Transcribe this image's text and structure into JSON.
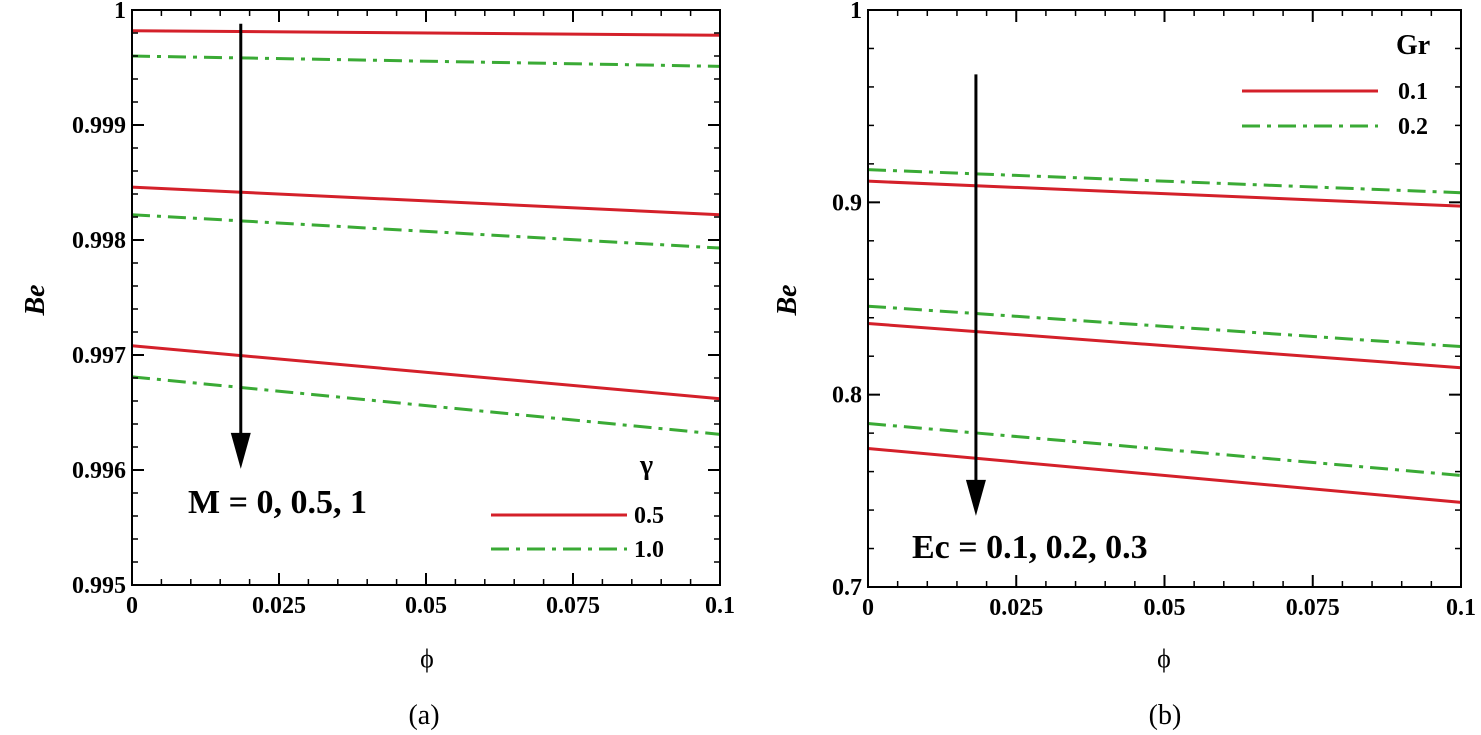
{
  "chart_data": [
    {
      "type": "line",
      "panel": "(a)",
      "xlabel": "ϕ",
      "ylabel": "Be",
      "xlim": [
        0,
        0.1
      ],
      "ylim": [
        0.995,
        1
      ],
      "xticks": [
        0,
        0.025,
        0.05,
        0.075,
        0.1
      ],
      "xtick_labels": [
        "0",
        "0.025",
        "0.05",
        "0.075",
        "0.1"
      ],
      "yticks": [
        0.995,
        0.996,
        0.997,
        0.998,
        0.999,
        1
      ],
      "ytick_labels": [
        "0.995",
        "0.996",
        "0.997",
        "0.998",
        "0.999",
        "1"
      ],
      "legend_title": "γ",
      "legend_position": "bottom-right",
      "annotation": "M = 0, 0.5, 1",
      "arrow": {
        "x": 0.0185,
        "y_from": 0.99988,
        "y_to": 0.99601
      },
      "series": [
        {
          "name": "0.5",
          "group": "0.5",
          "param": "M = 0",
          "style": "solid",
          "x": [
            0,
            0.1
          ],
          "y": [
            0.99982,
            0.99978
          ]
        },
        {
          "name": "1.0",
          "group": "1.0",
          "param": "M = 0",
          "style": "dashdot",
          "x": [
            0,
            0.1
          ],
          "y": [
            0.9996,
            0.99951
          ]
        },
        {
          "name": "0.5",
          "group": "0.5",
          "param": "M = 0.5",
          "style": "solid",
          "x": [
            0,
            0.1
          ],
          "y": [
            0.99846,
            0.99822
          ]
        },
        {
          "name": "1.0",
          "group": "1.0",
          "param": "M = 0.5",
          "style": "dashdot",
          "x": [
            0,
            0.1
          ],
          "y": [
            0.99822,
            0.99793
          ]
        },
        {
          "name": "0.5",
          "group": "0.5",
          "param": "M = 1",
          "style": "solid",
          "x": [
            0,
            0.1
          ],
          "y": [
            0.99708,
            0.99662
          ]
        },
        {
          "name": "1.0",
          "group": "1.0",
          "param": "M = 1",
          "style": "dashdot",
          "x": [
            0,
            0.1
          ],
          "y": [
            0.99681,
            0.99631
          ]
        }
      ],
      "legend": [
        {
          "label": "0.5",
          "style": "solid"
        },
        {
          "label": "1.0",
          "style": "dashdot"
        }
      ]
    },
    {
      "type": "line",
      "panel": "(b)",
      "xlabel": "ϕ",
      "ylabel": "Be",
      "xlim": [
        0,
        0.1
      ],
      "ylim": [
        0.7,
        1
      ],
      "xticks": [
        0,
        0.025,
        0.05,
        0.075,
        0.1
      ],
      "xtick_labels": [
        "0",
        "0.025",
        "0.05",
        "0.075",
        "0.1"
      ],
      "yticks": [
        0.7,
        0.8,
        0.9,
        1
      ],
      "ytick_labels": [
        "0.7",
        "0.8",
        "0.9",
        "1"
      ],
      "legend_title": "Gr",
      "legend_position": "top-right",
      "annotation": "Ec = 0.1, 0.2, 0.3",
      "arrow": {
        "x": 0.0182,
        "y_from": 0.9665,
        "y_to": 0.737
      },
      "series": [
        {
          "name": "0.1",
          "group": "0.1",
          "param": "Ec = 0.1",
          "style": "solid",
          "x": [
            0,
            0.1
          ],
          "y": [
            0.911,
            0.898
          ]
        },
        {
          "name": "0.2",
          "group": "0.2",
          "param": "Ec = 0.1",
          "style": "dashdot",
          "x": [
            0,
            0.1
          ],
          "y": [
            0.917,
            0.905
          ]
        },
        {
          "name": "0.1",
          "group": "0.1",
          "param": "Ec = 0.2",
          "style": "solid",
          "x": [
            0,
            0.1
          ],
          "y": [
            0.837,
            0.814
          ]
        },
        {
          "name": "0.2",
          "group": "0.2",
          "param": "Ec = 0.2",
          "style": "dashdot",
          "x": [
            0,
            0.1
          ],
          "y": [
            0.846,
            0.825
          ]
        },
        {
          "name": "0.1",
          "group": "0.1",
          "param": "Ec = 0.3",
          "style": "solid",
          "x": [
            0,
            0.1
          ],
          "y": [
            0.772,
            0.744
          ]
        },
        {
          "name": "0.2",
          "group": "0.2",
          "param": "Ec = 0.3",
          "style": "dashdot",
          "x": [
            0,
            0.1
          ],
          "y": [
            0.785,
            0.758
          ]
        }
      ],
      "legend": [
        {
          "label": "0.1",
          "style": "solid"
        },
        {
          "label": "0.2",
          "style": "dashdot"
        }
      ]
    }
  ],
  "colors": {
    "solid": "#d4202a",
    "dashdot": "#3aaa35",
    "axis": "#000000"
  }
}
